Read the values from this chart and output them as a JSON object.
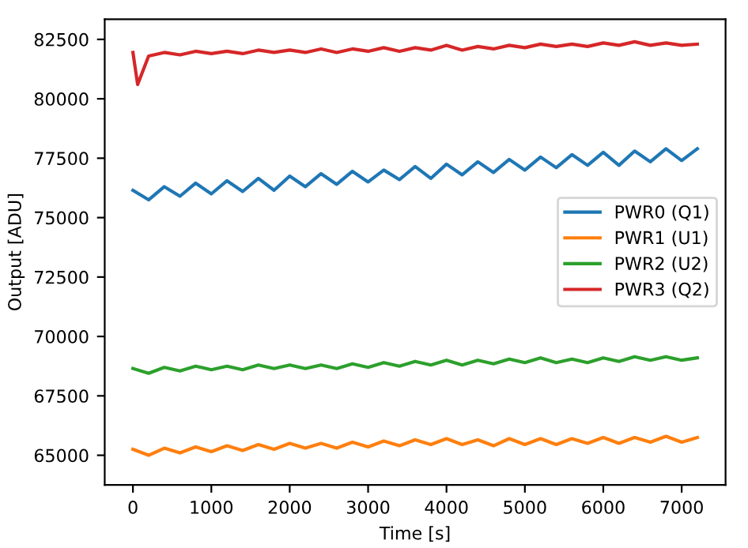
{
  "chart_data": {
    "type": "line",
    "xlabel": "Time [s]",
    "ylabel": "Output [ADU]",
    "xlim": [
      -360,
      7560
    ],
    "xticks": [
      0,
      1000,
      2000,
      3000,
      4000,
      5000,
      6000,
      7000
    ],
    "ylim": [
      63750,
      83350
    ],
    "yticks": [
      65000,
      67500,
      70000,
      72500,
      75000,
      77500,
      80000,
      82500
    ],
    "grid": false,
    "legend": "right",
    "series": [
      {
        "name": "PWR0 (Q1)",
        "color": "#1f77b4",
        "x": [
          0,
          200,
          400,
          600,
          800,
          1000,
          1200,
          1400,
          1600,
          1800,
          2000,
          2200,
          2400,
          2600,
          2800,
          3000,
          3200,
          3400,
          3600,
          3800,
          4000,
          4200,
          4400,
          4600,
          4800,
          5000,
          5200,
          5400,
          5600,
          5800,
          6000,
          6200,
          6400,
          6600,
          6800,
          7000,
          7200
        ],
        "values": [
          76150,
          75750,
          76300,
          75900,
          76450,
          76000,
          76550,
          76100,
          76650,
          76150,
          76750,
          76300,
          76850,
          76400,
          76950,
          76500,
          77000,
          76600,
          77150,
          76650,
          77250,
          76800,
          77350,
          76900,
          77450,
          77000,
          77550,
          77100,
          77650,
          77200,
          77750,
          77200,
          77800,
          77350,
          77900,
          77400,
          77900
        ]
      },
      {
        "name": "PWR1 (U1)",
        "color": "#ff7f0e",
        "x": [
          0,
          200,
          400,
          600,
          800,
          1000,
          1200,
          1400,
          1600,
          1800,
          2000,
          2200,
          2400,
          2600,
          2800,
          3000,
          3200,
          3400,
          3600,
          3800,
          4000,
          4200,
          4400,
          4600,
          4800,
          5000,
          5200,
          5400,
          5600,
          5800,
          6000,
          6200,
          6400,
          6600,
          6800,
          7000,
          7200
        ],
        "values": [
          65250,
          65000,
          65300,
          65100,
          65350,
          65150,
          65400,
          65200,
          65450,
          65250,
          65500,
          65300,
          65500,
          65300,
          65550,
          65350,
          65600,
          65400,
          65650,
          65450,
          65700,
          65450,
          65650,
          65400,
          65700,
          65450,
          65700,
          65450,
          65700,
          65500,
          65750,
          65500,
          65750,
          65550,
          65800,
          65550,
          65750
        ]
      },
      {
        "name": "PWR2 (U2)",
        "color": "#2ca02c",
        "x": [
          0,
          200,
          400,
          600,
          800,
          1000,
          1200,
          1400,
          1600,
          1800,
          2000,
          2200,
          2400,
          2600,
          2800,
          3000,
          3200,
          3400,
          3600,
          3800,
          4000,
          4200,
          4400,
          4600,
          4800,
          5000,
          5200,
          5400,
          5600,
          5800,
          6000,
          6200,
          6400,
          6600,
          6800,
          7000,
          7200
        ],
        "values": [
          68650,
          68450,
          68700,
          68550,
          68750,
          68600,
          68750,
          68600,
          68800,
          68650,
          68800,
          68650,
          68800,
          68650,
          68850,
          68700,
          68900,
          68750,
          68950,
          68800,
          69000,
          68800,
          69000,
          68850,
          69050,
          68900,
          69100,
          68900,
          69050,
          68900,
          69100,
          68950,
          69150,
          69000,
          69150,
          69000,
          69100
        ]
      },
      {
        "name": "PWR3 (Q2)",
        "color": "#d62728",
        "x": [
          0,
          60,
          200,
          400,
          600,
          800,
          1000,
          1200,
          1400,
          1600,
          1800,
          2000,
          2200,
          2400,
          2600,
          2800,
          3000,
          3200,
          3400,
          3600,
          3800,
          4000,
          4200,
          4400,
          4600,
          4800,
          5000,
          5200,
          5400,
          5600,
          5800,
          6000,
          6200,
          6400,
          6600,
          6800,
          7000,
          7200
        ],
        "values": [
          81950,
          80600,
          81800,
          81950,
          81850,
          82000,
          81900,
          82000,
          81900,
          82050,
          81950,
          82050,
          81950,
          82100,
          81950,
          82100,
          82000,
          82150,
          82000,
          82150,
          82050,
          82250,
          82050,
          82200,
          82100,
          82250,
          82150,
          82300,
          82200,
          82300,
          82200,
          82350,
          82250,
          82400,
          82250,
          82350,
          82250,
          82300
        ]
      }
    ]
  }
}
